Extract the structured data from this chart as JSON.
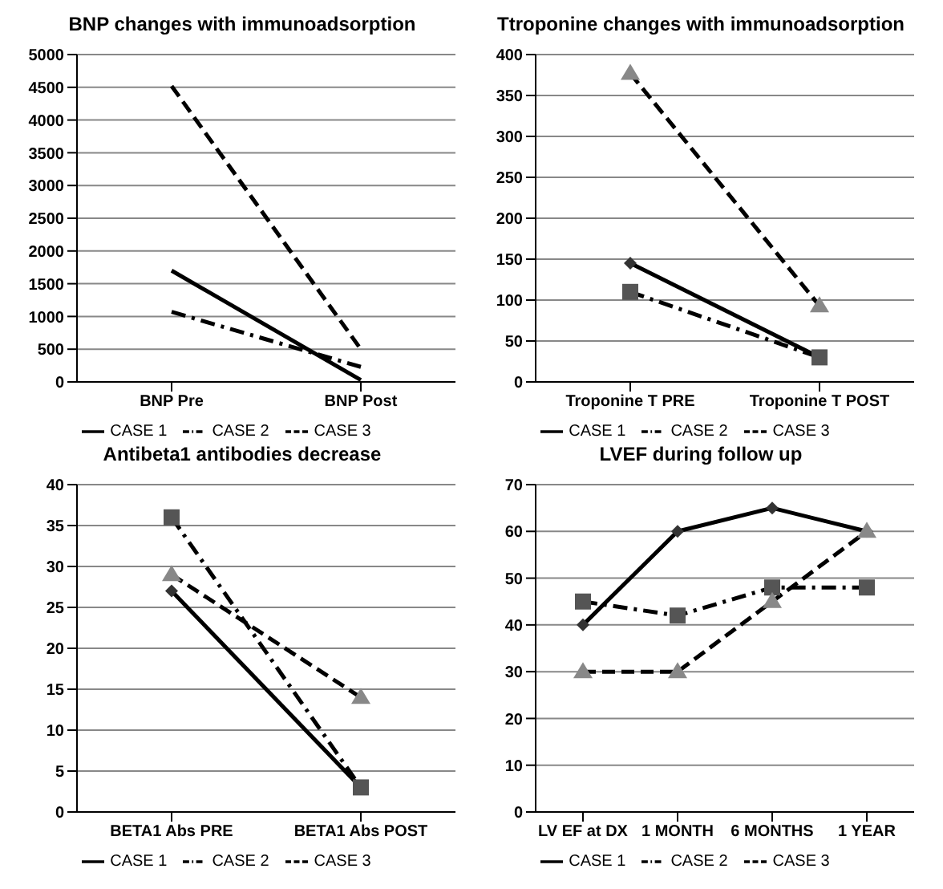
{
  "chart_data": [
    {
      "type": "line",
      "title": "BNP changes with immunoadsorption",
      "categories": [
        "BNP Pre",
        "BNP Post"
      ],
      "ylim": [
        0,
        5000
      ],
      "yticks": [
        0,
        500,
        1000,
        1500,
        2000,
        2500,
        3000,
        3500,
        4000,
        4500,
        5000
      ],
      "grid": "y",
      "legend": "bottom",
      "marker": "none",
      "series": [
        {
          "name": "CASE 1",
          "color": "#000000",
          "line_style": "solid",
          "values": [
            1700,
            30
          ]
        },
        {
          "name": "CASE 2",
          "color": "#000000",
          "line_style": "dashdot",
          "values": [
            1070,
            230
          ]
        },
        {
          "name": "CASE 3",
          "color": "#000000",
          "line_style": "dashed",
          "values": [
            4520,
            500
          ]
        }
      ]
    },
    {
      "type": "line",
      "title": "Ttroponine changes  with immunoadsorption",
      "categories": [
        "Troponine T PRE",
        "Troponine T POST"
      ],
      "ylim": [
        0,
        400
      ],
      "yticks": [
        0,
        50,
        100,
        150,
        200,
        250,
        300,
        350,
        400
      ],
      "grid": "y",
      "legend": "bottom",
      "series": [
        {
          "name": "CASE 1",
          "color": "#000000",
          "line_style": "solid",
          "marker": "diamond",
          "values": [
            145,
            30
          ]
        },
        {
          "name": "CASE 2",
          "color": "#000000",
          "line_style": "dashdot",
          "marker": "square",
          "values": [
            110,
            30
          ]
        },
        {
          "name": "CASE 3",
          "color": "#000000",
          "line_style": "dashed",
          "marker": "triangle",
          "values": [
            377,
            93
          ]
        }
      ]
    },
    {
      "type": "line",
      "title": "Antibeta1 antibodies decrease",
      "categories": [
        "BETA1 Abs PRE",
        "BETA1 Abs POST"
      ],
      "ylim": [
        0,
        40
      ],
      "yticks": [
        0,
        5,
        10,
        15,
        20,
        25,
        30,
        35,
        40
      ],
      "grid": "y",
      "legend": "bottom",
      "series": [
        {
          "name": "CASE 1",
          "color": "#000000",
          "line_style": "solid",
          "marker": "diamond",
          "values": [
            27,
            3
          ]
        },
        {
          "name": "CASE 2",
          "color": "#000000",
          "line_style": "dashdot",
          "marker": "square",
          "values": [
            36,
            3
          ]
        },
        {
          "name": "CASE 3",
          "color": "#000000",
          "line_style": "dashed",
          "marker": "triangle",
          "values": [
            29,
            14
          ]
        }
      ]
    },
    {
      "type": "line",
      "title": "LVEF during follow up",
      "categories": [
        "LV EF at DX",
        "1 MONTH",
        "6 MONTHS",
        "1 YEAR"
      ],
      "ylim": [
        0,
        70
      ],
      "yticks": [
        0,
        10,
        20,
        30,
        40,
        50,
        60,
        70
      ],
      "grid": "y",
      "legend": "bottom",
      "series": [
        {
          "name": "CASE 1",
          "color": "#000000",
          "line_style": "solid",
          "marker": "diamond",
          "values": [
            40,
            60,
            65,
            60
          ]
        },
        {
          "name": "CASE 2",
          "color": "#000000",
          "line_style": "dashdot",
          "marker": "square",
          "values": [
            45,
            42,
            48,
            48
          ]
        },
        {
          "name": "CASE 3",
          "color": "#000000",
          "line_style": "dashed",
          "marker": "triangle",
          "values": [
            30,
            30,
            45,
            60
          ]
        }
      ]
    }
  ]
}
